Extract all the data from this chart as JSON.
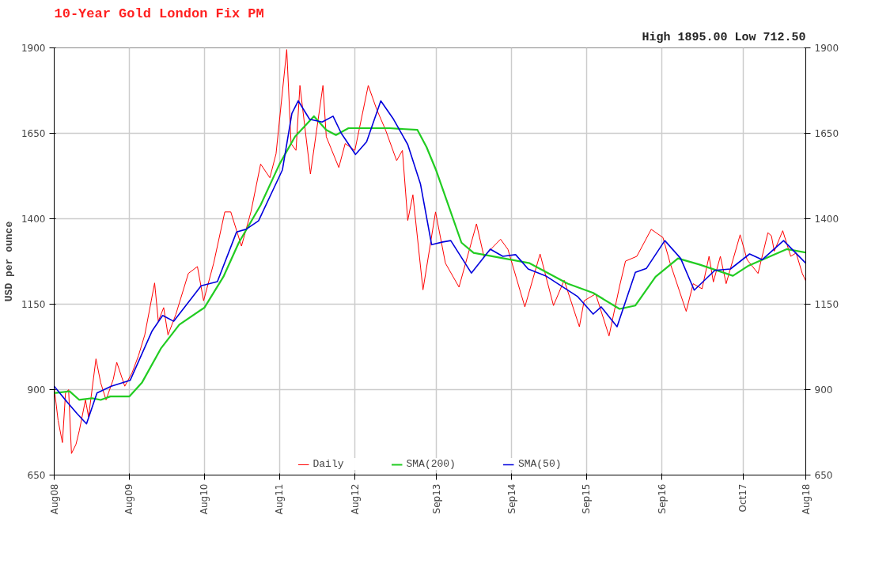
{
  "chart_data": {
    "type": "line",
    "title": "10-Year Gold London Fix PM",
    "ylabel": "USD per ounce",
    "annotations": [
      "High 1895.00 Low 712.50"
    ],
    "xlim": [
      "2008-08-01",
      "2018-08-01"
    ],
    "xticks": [
      {
        "value": "2008-08-01",
        "label": "Aug08"
      },
      {
        "value": "2009-08-01",
        "label": "Aug09"
      },
      {
        "value": "2010-08-01",
        "label": "Aug10"
      },
      {
        "value": "2011-08-01",
        "label": "Aug11"
      },
      {
        "value": "2012-08-01",
        "label": "Aug12"
      },
      {
        "value": "2013-09-01",
        "label": "Sep13"
      },
      {
        "value": "2014-09-01",
        "label": "Sep14"
      },
      {
        "value": "2015-09-01",
        "label": "Sep15"
      },
      {
        "value": "2016-09-01",
        "label": "Sep16"
      },
      {
        "value": "2017-10-01",
        "label": "Oct17"
      },
      {
        "value": "2018-08-01",
        "label": "Aug18"
      }
    ],
    "ylim": [
      650,
      1900
    ],
    "yticks": [
      650,
      900,
      1150,
      1400,
      1650,
      1900
    ],
    "y2lim": [
      650,
      1900
    ],
    "y2ticks": [
      650,
      900,
      1150,
      1400,
      1650,
      1900
    ],
    "grid": true,
    "legend": "bottom",
    "series": [
      {
        "name": "Daily",
        "color": "#ff0000",
        "x": [
          "2008-08-01",
          "2008-08-20",
          "2008-09-10",
          "2008-09-25",
          "2008-10-10",
          "2008-10-24",
          "2008-11-15",
          "2008-12-01",
          "2008-12-31",
          "2009-01-15",
          "2009-02-20",
          "2009-03-15",
          "2009-04-10",
          "2009-05-15",
          "2009-06-01",
          "2009-07-10",
          "2009-08-15",
          "2009-09-15",
          "2009-10-15",
          "2009-12-02",
          "2009-12-20",
          "2010-01-15",
          "2010-02-05",
          "2010-03-15",
          "2010-05-15",
          "2010-06-28",
          "2010-07-28",
          "2010-09-15",
          "2010-11-08",
          "2010-12-07",
          "2011-01-28",
          "2011-03-15",
          "2011-05-01",
          "2011-06-15",
          "2011-07-15",
          "2011-09-05",
          "2011-09-26",
          "2011-10-20",
          "2011-11-08",
          "2011-12-29",
          "2012-02-28",
          "2012-03-15",
          "2012-05-15",
          "2012-06-15",
          "2012-08-01",
          "2012-10-05",
          "2012-11-15",
          "2012-12-28",
          "2013-02-20",
          "2013-03-20",
          "2013-04-15",
          "2013-05-10",
          "2013-06-28",
          "2013-08-28",
          "2013-10-15",
          "2013-12-20",
          "2014-03-15",
          "2014-04-20",
          "2014-07-10",
          "2014-08-15",
          "2014-11-05",
          "2015-01-18",
          "2015-03-24",
          "2015-05-15",
          "2015-07-28",
          "2015-08-20",
          "2015-10-15",
          "2015-12-19",
          "2016-02-08",
          "2016-03-08",
          "2016-05-02",
          "2016-07-11",
          "2016-09-06",
          "2016-10-11",
          "2016-12-28",
          "2017-01-31",
          "2017-03-15",
          "2017-04-18",
          "2017-05-09",
          "2017-06-12",
          "2017-07-10",
          "2017-09-16",
          "2017-10-20",
          "2017-12-12",
          "2018-01-29",
          "2018-02-15",
          "2018-03-01",
          "2018-04-11",
          "2018-05-20",
          "2018-06-15",
          "2018-07-15",
          "2018-08-01"
        ],
        "values": [
          905,
          810,
          745,
          890,
          900,
          713,
          740,
          780,
          870,
          820,
          990,
          920,
          870,
          930,
          980,
          910,
          950,
          1000,
          1060,
          1212,
          1100,
          1140,
          1060,
          1120,
          1240,
          1260,
          1160,
          1270,
          1420,
          1420,
          1320,
          1420,
          1560,
          1520,
          1590,
          1895,
          1620,
          1600,
          1790,
          1531,
          1790,
          1640,
          1550,
          1620,
          1600,
          1790,
          1720,
          1660,
          1570,
          1600,
          1395,
          1470,
          1192,
          1420,
          1270,
          1200,
          1385,
          1290,
          1340,
          1310,
          1142,
          1297,
          1146,
          1220,
          1084,
          1160,
          1180,
          1057,
          1202,
          1276,
          1290,
          1369,
          1345,
          1270,
          1129,
          1210,
          1195,
          1290,
          1215,
          1290,
          1210,
          1353,
          1280,
          1240,
          1359,
          1350,
          1305,
          1365,
          1290,
          1300,
          1240,
          1218
        ]
      },
      {
        "name": "SMA(200)",
        "color": "#22cc22",
        "x": [
          "2008-08-01",
          "2008-10-15",
          "2008-12-01",
          "2009-02-01",
          "2009-03-15",
          "2009-05-01",
          "2009-08-01",
          "2009-10-01",
          "2010-01-01",
          "2010-04-01",
          "2010-08-01",
          "2010-11-01",
          "2011-01-15",
          "2011-05-01",
          "2011-08-01",
          "2011-10-15",
          "2012-01-15",
          "2012-03-15",
          "2012-05-01",
          "2012-07-01",
          "2013-01-15",
          "2013-06-01",
          "2013-07-15",
          "2013-09-01",
          "2014-01-01",
          "2014-03-01",
          "2014-09-01",
          "2014-11-28",
          "2015-06-01",
          "2015-10-03",
          "2016-02-08",
          "2016-04-25",
          "2016-08-01",
          "2016-11-18",
          "2017-03-02",
          "2017-08-12",
          "2017-10-28",
          "2018-04-30",
          "2018-08-01"
        ],
        "values": [
          890,
          895,
          870,
          875,
          870,
          880,
          880,
          920,
          1020,
          1090,
          1140,
          1230,
          1330,
          1440,
          1560,
          1640,
          1700,
          1660,
          1645,
          1665,
          1665,
          1660,
          1610,
          1540,
          1330,
          1300,
          1280,
          1270,
          1210,
          1183,
          1136,
          1146,
          1230,
          1284,
          1266,
          1233,
          1263,
          1311,
          1301
        ]
      },
      {
        "name": "SMA(50)",
        "color": "#0000dd",
        "x": [
          "2008-08-01",
          "2008-10-01",
          "2008-11-20",
          "2009-01-05",
          "2009-02-25",
          "2009-05-05",
          "2009-08-05",
          "2009-11-20",
          "2010-01-10",
          "2010-03-05",
          "2010-07-16",
          "2010-10-03",
          "2011-01-04",
          "2011-02-19",
          "2011-04-21",
          "2011-08-15",
          "2011-09-30",
          "2011-10-31",
          "2011-12-25",
          "2012-02-24",
          "2012-04-17",
          "2012-05-27",
          "2012-08-04",
          "2012-09-27",
          "2012-12-05",
          "2013-02-05",
          "2013-04-15",
          "2013-06-16",
          "2013-08-09",
          "2013-10-02",
          "2013-11-10",
          "2014-02-18",
          "2014-05-21",
          "2014-07-21",
          "2014-09-21",
          "2014-11-21",
          "2015-02-14",
          "2015-07-18",
          "2015-10-03",
          "2015-11-11",
          "2016-01-27",
          "2016-04-25",
          "2016-06-18",
          "2016-09-15",
          "2016-12-01",
          "2017-02-05",
          "2017-05-16",
          "2017-07-31",
          "2017-11-01",
          "2018-01-01",
          "2018-04-15",
          "2018-08-01"
        ],
        "values": [
          910,
          865,
          830,
          800,
          890,
          910,
          927,
          1072,
          1117,
          1100,
          1204,
          1216,
          1361,
          1369,
          1394,
          1543,
          1708,
          1745,
          1691,
          1683,
          1700,
          1650,
          1588,
          1625,
          1745,
          1691,
          1617,
          1501,
          1324,
          1332,
          1336,
          1241,
          1311,
          1290,
          1295,
          1253,
          1233,
          1173,
          1121,
          1142,
          1084,
          1243,
          1255,
          1336,
          1284,
          1191,
          1249,
          1253,
          1297,
          1280,
          1336,
          1270
        ]
      }
    ]
  }
}
